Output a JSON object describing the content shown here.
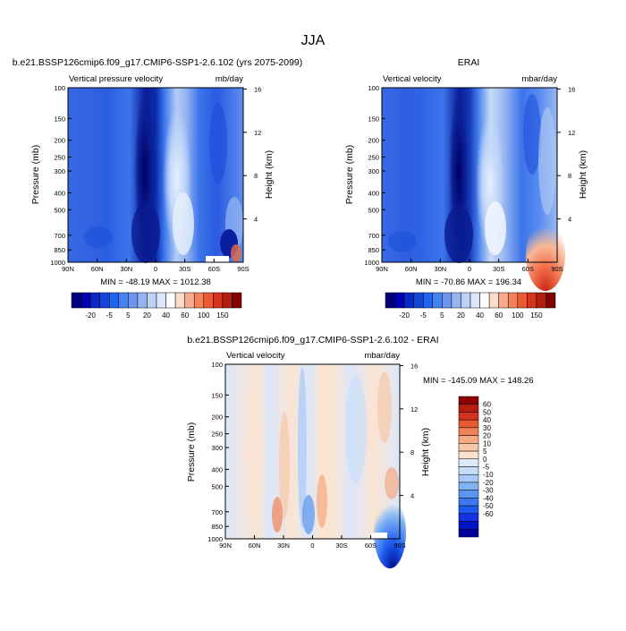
{
  "figure_title": "JJA",
  "colors": {
    "abs_scale": [
      "#000080",
      "#0000b4",
      "#0a28c8",
      "#1446dc",
      "#1e64f0",
      "#4682f0",
      "#6e96f0",
      "#96b4f0",
      "#bed2f5",
      "#dce6fa",
      "#ffffff",
      "#fadcc8",
      "#faaa8c",
      "#f5825a",
      "#eb5a32",
      "#d7321e",
      "#b41e0f",
      "#820000"
    ],
    "diff_scale": [
      "#0000a0",
      "#0014c8",
      "#1432e6",
      "#1e5af0",
      "#3c78f0",
      "#5a96f0",
      "#82b4f5",
      "#aac8f8",
      "#c8dcfa",
      "#dce8fa",
      "#fbe1cd",
      "#f8c8aa",
      "#f5aa82",
      "#f0825a",
      "#e65a32",
      "#d2321e",
      "#b41e0f",
      "#8c0000"
    ]
  },
  "panels": {
    "top_left": {
      "title": "b.e21.BSSP126cmip6.f09_g17.CMIP6-SSP1-2.6.102 (yrs 2075-2099)",
      "left_label": "Vertical pressure velocity",
      "right_label": "mb/day",
      "stats": "MIN = -48.19   MAX = 1012.38"
    },
    "top_right": {
      "title": "ERAI",
      "left_label": "Vertical velocity",
      "right_label": "mbar/day",
      "stats": "MIN = -70.86   MAX = 196.34"
    },
    "bottom": {
      "title": "b.e21.BSSP126cmip6.f09_g17.CMIP6-SSP1-2.6.102 - ERAI",
      "left_label": "Vertical velocity",
      "right_label": "mbar/day",
      "stats": "MIN = -145.09   MAX = 148.26"
    }
  },
  "axes": {
    "ylabel": "Pressure (mb)",
    "y2label": "Height (km)",
    "pressure_ticks": [
      "100",
      "150",
      "200",
      "250",
      "300",
      "400",
      "500",
      "700",
      "850",
      "1000"
    ],
    "height_ticks": [
      "16",
      "12",
      "8",
      "4"
    ],
    "lat_ticks": [
      "90N",
      "60N",
      "30N",
      "0",
      "30S",
      "60S",
      "90S"
    ]
  },
  "chart_data": [
    {
      "type": "heatmap",
      "title": "b.e21.BSSP126cmip6.f09_g17.CMIP6-SSP1-2.6.102 (yrs 2075-2099)",
      "field": "Vertical pressure velocity",
      "units": "mb/day",
      "x_range": [
        "90N",
        "90S"
      ],
      "y_range_mb": [
        1000,
        100
      ],
      "min": -48.19,
      "max": 1012.38,
      "colorbar_levels": [
        -20,
        -5,
        5,
        20,
        40,
        60,
        100,
        150
      ]
    },
    {
      "type": "heatmap",
      "title": "ERAI",
      "field": "Vertical velocity",
      "units": "mbar/day",
      "x_range": [
        "90N",
        "90S"
      ],
      "y_range_mb": [
        1000,
        100
      ],
      "min": -70.86,
      "max": 196.34,
      "colorbar_levels": [
        -20,
        -5,
        5,
        20,
        40,
        60,
        100,
        150
      ]
    },
    {
      "type": "heatmap",
      "title": "b.e21.BSSP126cmip6.f09_g17.CMIP6-SSP1-2.6.102 - ERAI",
      "field": "Vertical velocity",
      "units": "mbar/day",
      "x_range": [
        "90N",
        "90S"
      ],
      "y_range_mb": [
        1000,
        100
      ],
      "min": -145.09,
      "max": 148.26,
      "colorbar_levels": [
        60,
        50,
        40,
        30,
        20,
        10,
        5,
        0,
        -5,
        -10,
        -20,
        -30,
        -40,
        -50,
        -60
      ]
    }
  ]
}
